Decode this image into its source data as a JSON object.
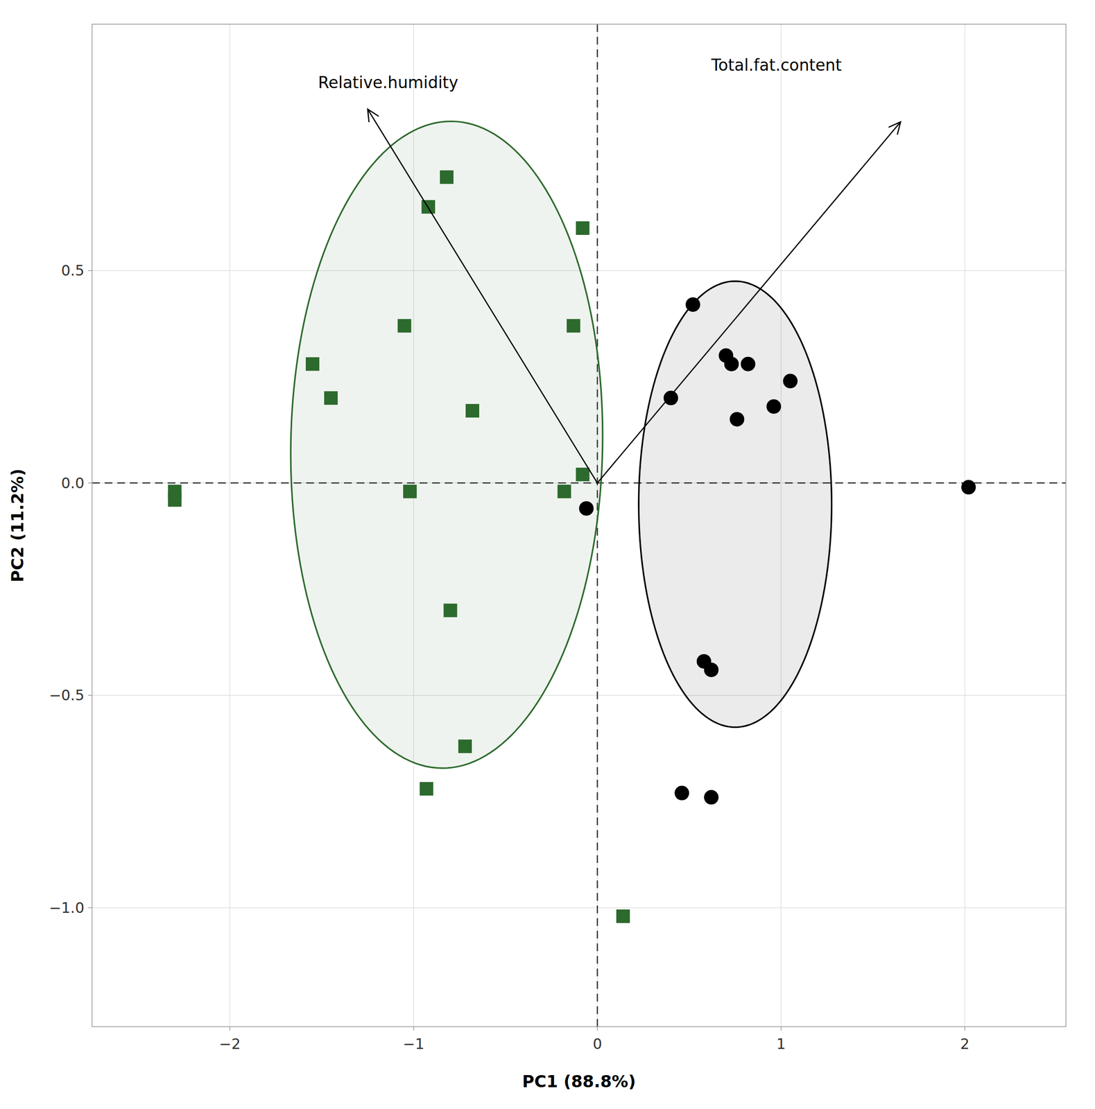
{
  "chart_data": {
    "type": "scatter",
    "xlabel": "PC1 (88.8%)",
    "ylabel": "PC2 (11.2%)",
    "xlim": [
      -2.75,
      2.55
    ],
    "ylim": [
      -1.28,
      1.08
    ],
    "xticks": [
      {
        "value": -2,
        "label": "−2"
      },
      {
        "value": -1,
        "label": "−1"
      },
      0,
      1,
      2
    ],
    "yticks": [
      {
        "value": -1.0,
        "label": "−1.0"
      },
      {
        "value": -0.5,
        "label": "−0.5"
      },
      {
        "value": 0.0,
        "label": "0.0"
      },
      {
        "value": 0.5,
        "label": "0.5"
      }
    ],
    "grid": true,
    "series": [
      {
        "color": "#2d6a2d",
        "marker": "square",
        "x": [
          -2.3,
          -2.3,
          -1.55,
          -1.45,
          -1.05,
          -1.02,
          -0.92,
          -0.82,
          -0.8,
          -0.68,
          -0.18,
          -0.13,
          -0.08,
          -0.72,
          -0.93,
          0.14,
          -0.08
        ],
        "values": [
          -0.02,
          -0.04,
          0.28,
          0.2,
          0.37,
          -0.02,
          0.65,
          0.72,
          -0.3,
          0.17,
          -0.02,
          0.37,
          0.6,
          -0.62,
          -0.72,
          -1.02,
          0.02
        ]
      },
      {
        "color": "#000000",
        "marker": "circle",
        "x": [
          -0.06,
          0.4,
          0.52,
          0.58,
          0.62,
          0.7,
          0.73,
          0.76,
          0.82,
          0.96,
          1.05,
          2.02,
          0.46,
          0.62
        ],
        "values": [
          -0.06,
          0.2,
          0.42,
          -0.42,
          -0.44,
          0.3,
          0.28,
          0.15,
          0.28,
          0.18,
          0.24,
          -0.01,
          -0.73,
          -0.74
        ]
      }
    ],
    "ellipses": [
      {
        "center_x": -0.82,
        "center_y": 0.09,
        "width": 1.7,
        "height": 1.52,
        "angle": 7,
        "color": "#2d6a2d"
      },
      {
        "center_x": 0.75,
        "center_y": -0.05,
        "width": 1.05,
        "height": 1.05,
        "angle": -20,
        "color": "#000000"
      }
    ],
    "arrows": [
      {
        "x0": 0.0,
        "y0": 0.0,
        "x": -1.25,
        "y": 0.88
      },
      {
        "x0": 0.0,
        "y0": 0.0,
        "x": 1.65,
        "y": 0.85
      }
    ],
    "annotations": [
      {
        "text": "Relative.humidity",
        "x": -1.52,
        "y": 0.93
      },
      {
        "text": "Total.fat.content",
        "x": 0.62,
        "y": 0.97
      }
    ],
    "reference_lines": {
      "x": [
        0
      ],
      "y": [
        0
      ]
    }
  }
}
